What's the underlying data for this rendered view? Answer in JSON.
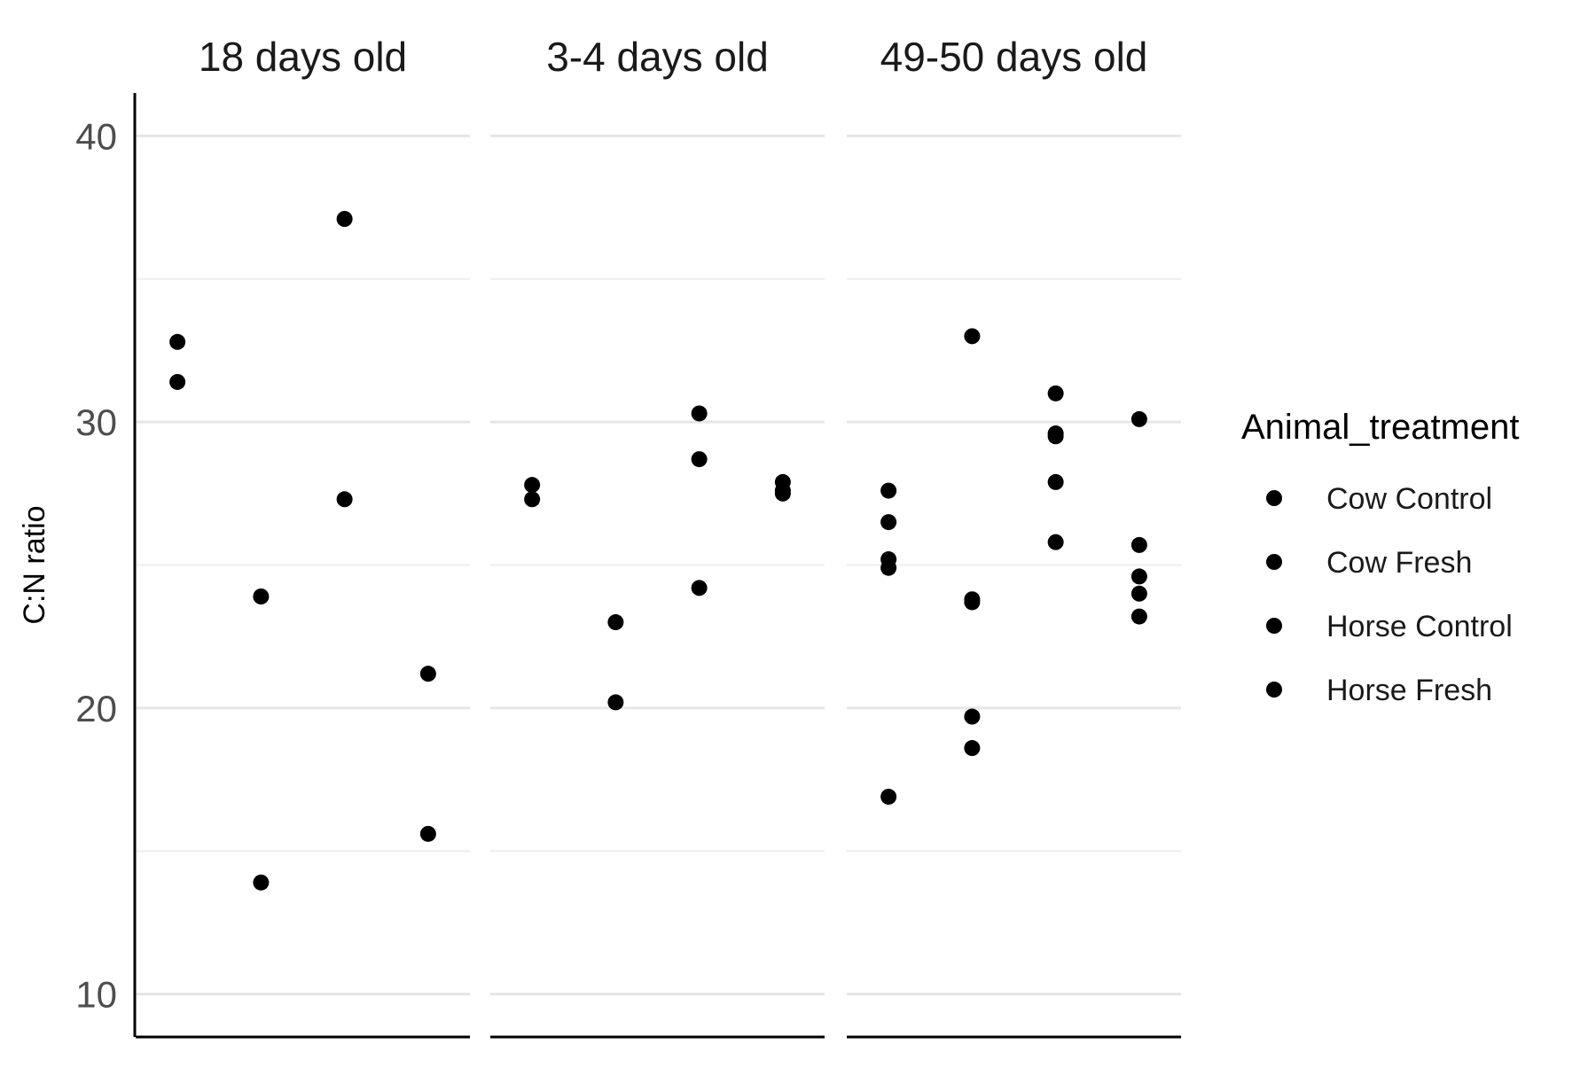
{
  "chart_data": {
    "type": "scatter",
    "facets": [
      {
        "title": "18 days old",
        "points": [
          {
            "group": "Cow Control",
            "y": 32.8
          },
          {
            "group": "Cow Control",
            "y": 31.4
          },
          {
            "group": "Cow Fresh",
            "y": 23.9
          },
          {
            "group": "Cow Fresh",
            "y": 13.9
          },
          {
            "group": "Horse Control",
            "y": 37.1
          },
          {
            "group": "Horse Control",
            "y": 27.3
          },
          {
            "group": "Horse Fresh",
            "y": 21.2
          },
          {
            "group": "Horse Fresh",
            "y": 15.6
          }
        ]
      },
      {
        "title": "3-4 days old",
        "points": [
          {
            "group": "Cow Control",
            "y": 27.8
          },
          {
            "group": "Cow Control",
            "y": 27.3
          },
          {
            "group": "Cow Fresh",
            "y": 23.0
          },
          {
            "group": "Cow Fresh",
            "y": 20.2
          },
          {
            "group": "Horse Control",
            "y": 30.3
          },
          {
            "group": "Horse Control",
            "y": 28.7
          },
          {
            "group": "Horse Control",
            "y": 24.2
          },
          {
            "group": "Horse Fresh",
            "y": 27.9
          },
          {
            "group": "Horse Fresh",
            "y": 27.6
          },
          {
            "group": "Horse Fresh",
            "y": 27.5
          }
        ]
      },
      {
        "title": "49-50 days old",
        "points": [
          {
            "group": "Cow Control",
            "y": 27.6
          },
          {
            "group": "Cow Control",
            "y": 26.5
          },
          {
            "group": "Cow Control",
            "y": 25.2
          },
          {
            "group": "Cow Control",
            "y": 24.9
          },
          {
            "group": "Cow Control",
            "y": 16.9
          },
          {
            "group": "Cow Fresh",
            "y": 33.0
          },
          {
            "group": "Cow Fresh",
            "y": 23.8
          },
          {
            "group": "Cow Fresh",
            "y": 23.7
          },
          {
            "group": "Cow Fresh",
            "y": 19.7
          },
          {
            "group": "Cow Fresh",
            "y": 18.6
          },
          {
            "group": "Horse Control",
            "y": 31.0
          },
          {
            "group": "Horse Control",
            "y": 29.6
          },
          {
            "group": "Horse Control",
            "y": 29.5
          },
          {
            "group": "Horse Control",
            "y": 27.9
          },
          {
            "group": "Horse Control",
            "y": 25.8
          },
          {
            "group": "Horse Fresh",
            "y": 30.1
          },
          {
            "group": "Horse Fresh",
            "y": 25.7
          },
          {
            "group": "Horse Fresh",
            "y": 24.6
          },
          {
            "group": "Horse Fresh",
            "y": 24.0
          },
          {
            "group": "Horse Fresh",
            "y": 23.2
          }
        ]
      }
    ],
    "x_categories": [
      "Cow Control",
      "Cow Fresh",
      "Horse Control",
      "Horse Fresh"
    ],
    "x_tick_labels_shown": false,
    "ylabel": "C:N ratio",
    "ylim": [
      8.5,
      41.5
    ],
    "yticks": [
      10,
      20,
      30,
      40
    ],
    "y_tick_labels": [
      "10",
      "20",
      "30",
      "40"
    ],
    "y_minor_gridlines": [
      15,
      25,
      35
    ],
    "grid": true,
    "legend": {
      "title": "Animal_treatment",
      "placement": "right",
      "entries": [
        "Cow Control",
        "Cow Fresh",
        "Horse Control",
        "Horse Fresh"
      ]
    },
    "point_color": "#000000",
    "gridline_color": "#ebebeb"
  }
}
